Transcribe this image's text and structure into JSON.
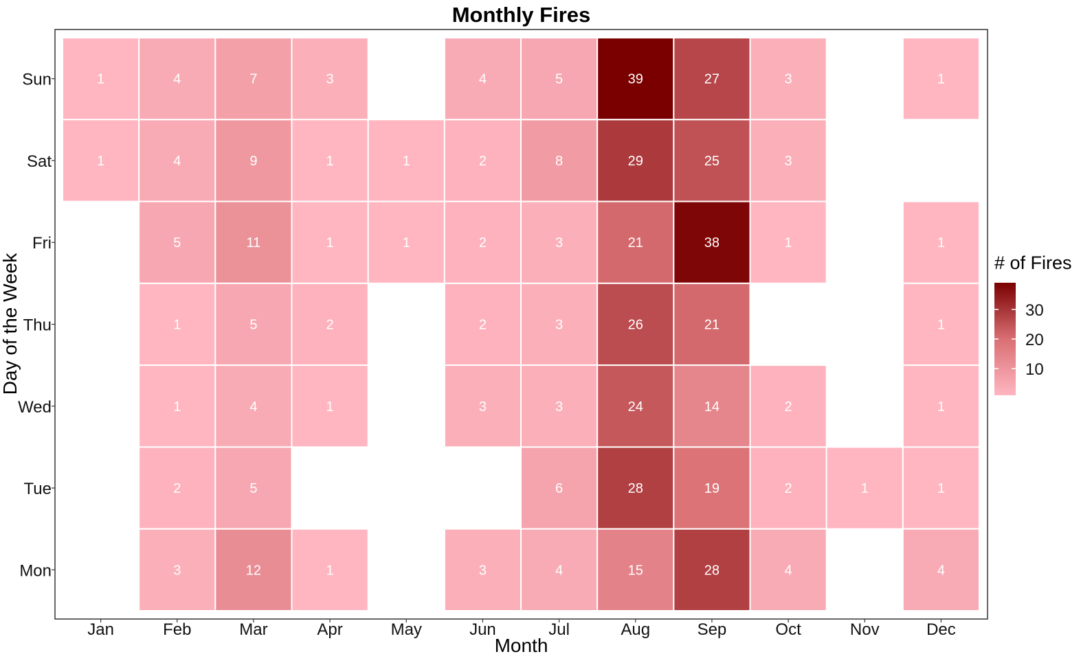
{
  "chart_data": {
    "type": "heatmap",
    "title": "Monthly Fires",
    "xlabel": "Month",
    "ylabel": "Day of the Week",
    "x_categories": [
      "Jan",
      "Feb",
      "Mar",
      "Apr",
      "May",
      "Jun",
      "Jul",
      "Aug",
      "Sep",
      "Oct",
      "Nov",
      "Dec"
    ],
    "y_categories": [
      "Sun",
      "Sat",
      "Fri",
      "Thu",
      "Wed",
      "Tue",
      "Mon"
    ],
    "values": [
      [
        1,
        4,
        7,
        3,
        null,
        4,
        5,
        39,
        27,
        3,
        null,
        1
      ],
      [
        1,
        4,
        9,
        1,
        1,
        2,
        8,
        29,
        25,
        3,
        null,
        null
      ],
      [
        null,
        5,
        11,
        1,
        1,
        2,
        3,
        21,
        38,
        1,
        null,
        1
      ],
      [
        null,
        1,
        5,
        2,
        null,
        2,
        3,
        26,
        21,
        null,
        null,
        1
      ],
      [
        null,
        1,
        4,
        1,
        null,
        3,
        3,
        24,
        14,
        2,
        null,
        1
      ],
      [
        null,
        2,
        5,
        null,
        null,
        null,
        6,
        28,
        19,
        2,
        1,
        1
      ],
      [
        null,
        3,
        12,
        1,
        null,
        3,
        4,
        15,
        28,
        4,
        null,
        4
      ]
    ],
    "legend": {
      "title": "# of Fires",
      "position": "right",
      "ticks": [
        "10",
        "20",
        "30"
      ],
      "range": [
        1,
        39
      ]
    },
    "colors": {
      "low": "#ffb6c1",
      "mid": "#d96f73",
      "high": "#7a0000",
      "cell_text": "#ffffff",
      "panel_border": "#333333"
    }
  }
}
